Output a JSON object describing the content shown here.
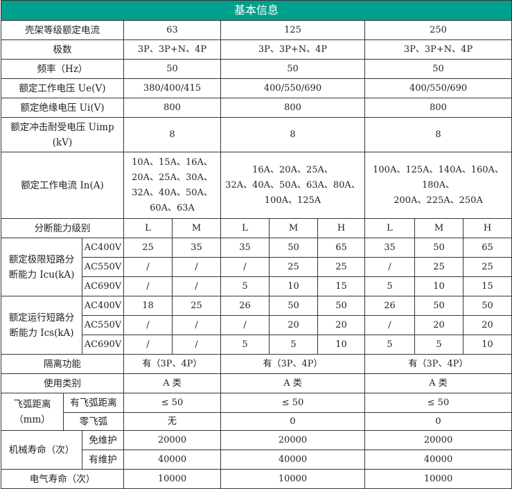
{
  "title": "基本信息",
  "header_color": "#00a08e",
  "frame_current": {
    "label": "壳架等级额定电流",
    "values": [
      "63",
      "125",
      "250"
    ]
  },
  "poles": {
    "label": "极数",
    "values": [
      "3P、3P+N、4P",
      "3P、3P+N、4P",
      "3P、3P+N、4P"
    ]
  },
  "frequency": {
    "label": "频率（Hz）",
    "values": [
      "50",
      "50",
      "50"
    ]
  },
  "ue": {
    "label": "额定工作电压 Ue(V)",
    "values": [
      "380/400/415",
      "400/550/690",
      "400/550/690"
    ]
  },
  "ui": {
    "label": "额定绝缘电压 Ui(V)",
    "values": [
      "800",
      "800",
      "800"
    ]
  },
  "uimp": {
    "label": "额定冲击耐受电压 Uimp\n(kV)",
    "values": [
      "8",
      "8",
      "8"
    ]
  },
  "in": {
    "label": "额定工作电流 In(A)",
    "values": [
      "10A、15A、16A、\n20A、25A、30A、\n32A、40A、50A、\n60A、63A",
      "16A、20A、25A、\n32A、40A、50A、63A、80A、\n100A、125A",
      "100A、125A、140A、160A、180A、\n200A、225A、250A"
    ]
  },
  "breaking_class": {
    "label": "分断能力级别",
    "values": [
      "L",
      "M",
      "L",
      "M",
      "H",
      "L",
      "M",
      "H"
    ]
  },
  "icu": {
    "label": "额定极限短路分\n断能力 Icu(kA)",
    "rows": [
      {
        "voltage": "AC400V",
        "values": [
          "25",
          "35",
          "35",
          "50",
          "65",
          "35",
          "50",
          "65"
        ]
      },
      {
        "voltage": "AC550V",
        "values": [
          "/",
          "/",
          "/",
          "25",
          "25",
          "/",
          "25",
          "25"
        ]
      },
      {
        "voltage": "AC690V",
        "values": [
          "/",
          "/",
          "5",
          "10",
          "15",
          "5",
          "10",
          "15"
        ]
      }
    ]
  },
  "ics": {
    "label": "额定运行短路分\n断能力 Ics(kA)",
    "rows": [
      {
        "voltage": "AC400V",
        "values": [
          "18",
          "25",
          "26",
          "50",
          "50",
          "26",
          "50",
          "50"
        ]
      },
      {
        "voltage": "AC550V",
        "values": [
          "/",
          "/",
          "/",
          "20",
          "20",
          "/",
          "20",
          "20"
        ]
      },
      {
        "voltage": "AC690V",
        "values": [
          "/",
          "/",
          "5",
          "5",
          "10",
          "5",
          "5",
          "10"
        ]
      }
    ]
  },
  "isolation": {
    "label": "隔离功能",
    "values": [
      "有（3P、4P）",
      "有（3P、4P）",
      "有（3P、4P）"
    ]
  },
  "category": {
    "label": "使用类别",
    "values": [
      "A 类",
      "A 类",
      "A 类"
    ]
  },
  "arc": {
    "label": "飞弧距离\n（mm）",
    "rows": [
      {
        "label": "有飞弧距离",
        "values": [
          "≤ 50",
          "≤ 50",
          "≤ 50"
        ]
      },
      {
        "label": "零飞弧",
        "values": [
          "无",
          "0",
          "0"
        ]
      }
    ]
  },
  "mech_life": {
    "label": "机械寿命（次）",
    "rows": [
      {
        "label": "免维护",
        "values": [
          "20000",
          "20000",
          "20000"
        ]
      },
      {
        "label": "有维护",
        "values": [
          "40000",
          "40000",
          "40000"
        ]
      }
    ]
  },
  "elec_life": {
    "label": "电气寿命（次）",
    "values": [
      "10000",
      "10000",
      "10000"
    ]
  }
}
